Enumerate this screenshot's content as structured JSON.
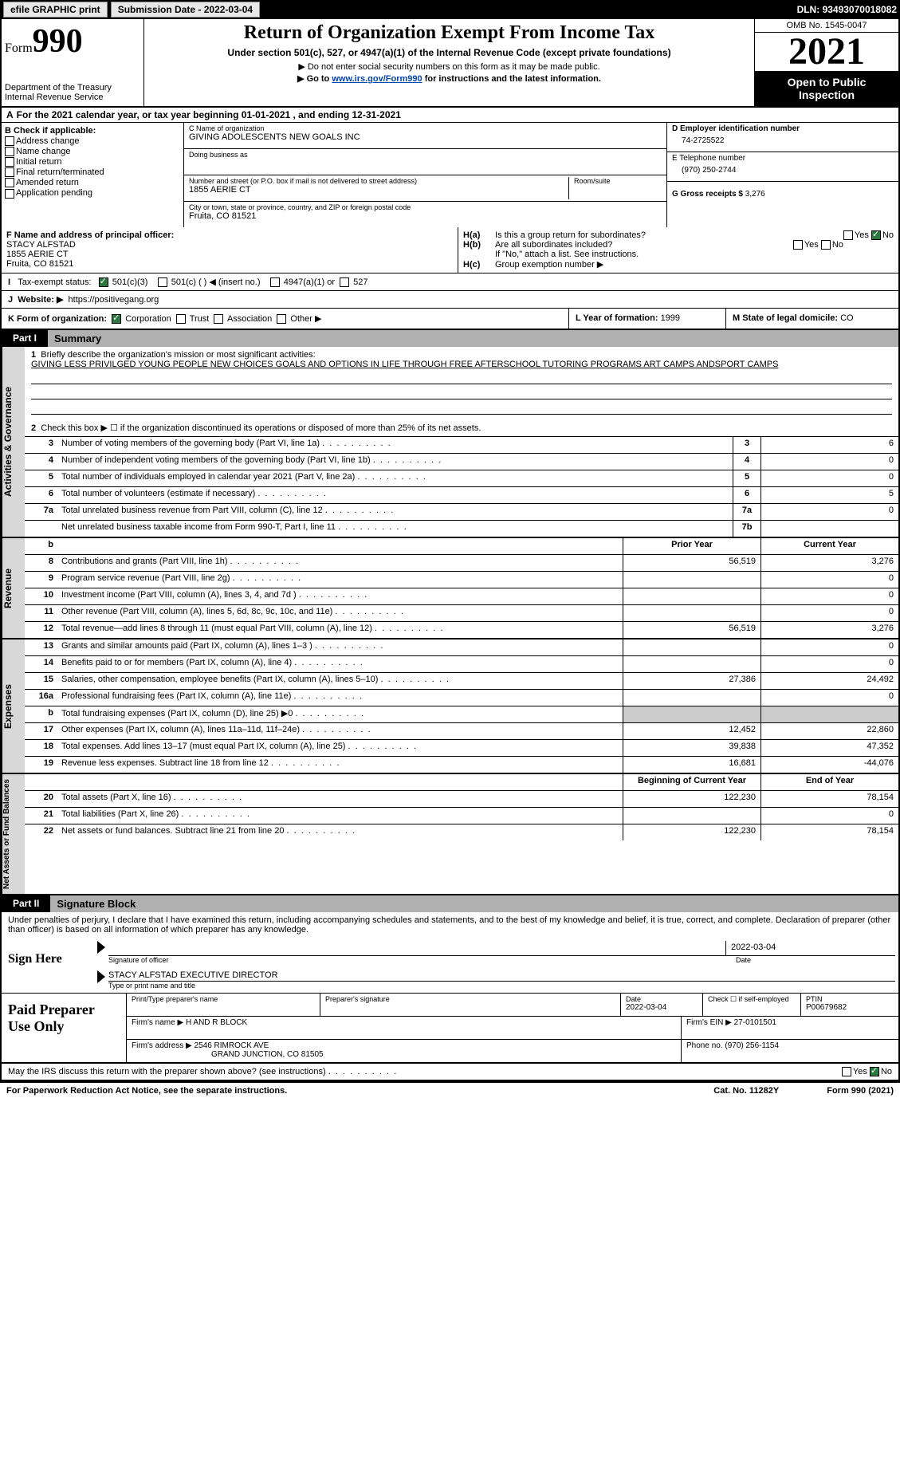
{
  "topbar": {
    "efile": "efile GRAPHIC print",
    "subdate_lbl": "Submission Date - ",
    "subdate": "2022-03-04",
    "dln_lbl": "DLN: ",
    "dln": "93493070018082"
  },
  "header": {
    "form_word": "Form",
    "form_num": "990",
    "dept": "Department of the Treasury",
    "irs": "Internal Revenue Service",
    "title": "Return of Organization Exempt From Income Tax",
    "subtitle": "Under section 501(c), 527, or 4947(a)(1) of the Internal Revenue Code (except private foundations)",
    "note1": "▶ Do not enter social security numbers on this form as it may be made public.",
    "note2_pre": "▶ Go to ",
    "note2_link": "www.irs.gov/Form990",
    "note2_post": " for instructions and the latest information.",
    "omb": "OMB No. 1545-0047",
    "year": "2021",
    "inspect": "Open to Public Inspection"
  },
  "sectA": {
    "text": "For the 2021 calendar year, or tax year beginning 01-01-2021    , and ending 12-31-2021"
  },
  "boxB": {
    "hdr": "B Check if applicable:",
    "items": [
      "Address change",
      "Name change",
      "Initial return",
      "Final return/terminated",
      "Amended return",
      "Application pending"
    ]
  },
  "boxC": {
    "name_lbl": "C Name of organization",
    "name": "GIVING ADOLESCENTS NEW GOALS INC",
    "dba_lbl": "Doing business as",
    "dba": "",
    "addr_lbl": "Number and street (or P.O. box if mail is not delivered to street address)",
    "room_lbl": "Room/suite",
    "addr": "1855 AERIE CT",
    "city_lbl": "City or town, state or province, country, and ZIP or foreign postal code",
    "city": "Fruita, CO  81521"
  },
  "boxD": {
    "ein_lbl": "D Employer identification number",
    "ein": "74-2725522",
    "tel_lbl": "E Telephone number",
    "tel": "(970) 250-2744",
    "gross_lbl": "G Gross receipts $ ",
    "gross": "3,276"
  },
  "boxF": {
    "lbl": "F  Name and address of principal officer:",
    "name": "STACY ALFSTAD",
    "addr1": "1855 AERIE CT",
    "addr2": "Fruita, CO  81521"
  },
  "boxH": {
    "a_lbl": "Is this a group return for subordinates?",
    "a_tag": "H(a)",
    "b_lbl": "Are all subordinates included?",
    "b_tag": "H(b)",
    "b_note": "If \"No,\" attach a list. See instructions.",
    "c_lbl": "Group exemption number ▶",
    "c_tag": "H(c)",
    "yes": "Yes",
    "no": "No"
  },
  "boxI": {
    "lbl": "Tax-exempt status:",
    "c3": "501(c)(3)",
    "c": "501(c) (  ) ◀ (insert no.)",
    "a1": "4947(a)(1) or",
    "s527": "527"
  },
  "boxJ": {
    "lbl": "Website: ▶",
    "val": "https://positivegang.org"
  },
  "boxK": {
    "lbl": "K Form of organization:",
    "corp": "Corporation",
    "trust": "Trust",
    "assoc": "Association",
    "other": "Other ▶"
  },
  "boxL": {
    "lbl": "L Year of formation: ",
    "val": "1999"
  },
  "boxM": {
    "lbl": "M State of legal domicile: ",
    "val": "CO"
  },
  "part1": {
    "tab": "Part I",
    "title": "Summary"
  },
  "summary": {
    "l1_lbl": "Briefly describe the organization's mission or most significant activities:",
    "l1_txt": "GIVING LESS PRIVILGED YOUNG PEOPLE NEW CHOICES GOALS AND OPTIONS IN LIFE THROUGH FREE AFTERSCHOOL TUTORING PROGRAMS ART CAMPS ANDSPORT CAMPS",
    "l2": "Check this box ▶ ☐  if the organization discontinued its operations or disposed of more than 25% of its net assets.",
    "rows_gov": [
      {
        "n": "3",
        "t": "Number of voting members of the governing body (Part VI, line 1a)",
        "rn": "3",
        "v": "6"
      },
      {
        "n": "4",
        "t": "Number of independent voting members of the governing body (Part VI, line 1b)",
        "rn": "4",
        "v": "0"
      },
      {
        "n": "5",
        "t": "Total number of individuals employed in calendar year 2021 (Part V, line 2a)",
        "rn": "5",
        "v": "0"
      },
      {
        "n": "6",
        "t": "Total number of volunteers (estimate if necessary)",
        "rn": "6",
        "v": "5"
      },
      {
        "n": "7a",
        "t": "Total unrelated business revenue from Part VIII, column (C), line 12",
        "rn": "7a",
        "v": "0"
      },
      {
        "n": "",
        "t": "Net unrelated business taxable income from Form 990-T, Part I, line 11",
        "rn": "7b",
        "v": ""
      }
    ],
    "col_prior": "Prior Year",
    "col_curr": "Current Year",
    "vtab_gov": "Activities & Governance",
    "vtab_rev": "Revenue",
    "vtab_exp": "Expenses",
    "vtab_net": "Net Assets or Fund Balances",
    "rows_rev": [
      {
        "n": "8",
        "t": "Contributions and grants (Part VIII, line 1h)",
        "p": "56,519",
        "c": "3,276"
      },
      {
        "n": "9",
        "t": "Program service revenue (Part VIII, line 2g)",
        "p": "",
        "c": "0"
      },
      {
        "n": "10",
        "t": "Investment income (Part VIII, column (A), lines 3, 4, and 7d )",
        "p": "",
        "c": "0"
      },
      {
        "n": "11",
        "t": "Other revenue (Part VIII, column (A), lines 5, 6d, 8c, 9c, 10c, and 11e)",
        "p": "",
        "c": "0"
      },
      {
        "n": "12",
        "t": "Total revenue—add lines 8 through 11 (must equal Part VIII, column (A), line 12)",
        "p": "56,519",
        "c": "3,276"
      }
    ],
    "rows_exp": [
      {
        "n": "13",
        "t": "Grants and similar amounts paid (Part IX, column (A), lines 1–3 )",
        "p": "",
        "c": "0"
      },
      {
        "n": "14",
        "t": "Benefits paid to or for members (Part IX, column (A), line 4)",
        "p": "",
        "c": "0"
      },
      {
        "n": "15",
        "t": "Salaries, other compensation, employee benefits (Part IX, column (A), lines 5–10)",
        "p": "27,386",
        "c": "24,492"
      },
      {
        "n": "16a",
        "t": "Professional fundraising fees (Part IX, column (A), line 11e)",
        "p": "",
        "c": "0"
      },
      {
        "n": "b",
        "t": "Total fundraising expenses (Part IX, column (D), line 25) ▶0",
        "p": "SHADE",
        "c": "SHADE"
      },
      {
        "n": "17",
        "t": "Other expenses (Part IX, column (A), lines 11a–11d, 11f–24e)",
        "p": "12,452",
        "c": "22,860"
      },
      {
        "n": "18",
        "t": "Total expenses. Add lines 13–17 (must equal Part IX, column (A), line 25)",
        "p": "39,838",
        "c": "47,352"
      },
      {
        "n": "19",
        "t": "Revenue less expenses. Subtract line 18 from line 12",
        "p": "16,681",
        "c": "-44,076"
      }
    ],
    "col_beg": "Beginning of Current Year",
    "col_end": "End of Year",
    "rows_net": [
      {
        "n": "20",
        "t": "Total assets (Part X, line 16)",
        "p": "122,230",
        "c": "78,154"
      },
      {
        "n": "21",
        "t": "Total liabilities (Part X, line 26)",
        "p": "",
        "c": "0"
      },
      {
        "n": "22",
        "t": "Net assets or fund balances. Subtract line 21 from line 20",
        "p": "122,230",
        "c": "78,154"
      }
    ]
  },
  "part2": {
    "tab": "Part II",
    "title": "Signature Block"
  },
  "sig": {
    "penalty": "Under penalties of perjury, I declare that I have examined this return, including accompanying schedules and statements, and to the best of my knowledge and belief, it is true, correct, and complete. Declaration of preparer (other than officer) is based on all information of which preparer has any knowledge.",
    "sign_here": "Sign Here",
    "sig_officer": "Signature of officer",
    "date": "Date",
    "sig_date": "2022-03-04",
    "name_title": "STACY ALFSTAD  EXECUTIVE DIRECTOR",
    "type_name": "Type or print name and title",
    "paid": "Paid Preparer Use Only",
    "pp_name": "Print/Type preparer's name",
    "pp_sig": "Preparer's signature",
    "pp_date_lbl": "Date",
    "pp_date": "2022-03-04",
    "pp_check": "Check ☐ if self-employed",
    "ptin_lbl": "PTIN",
    "ptin": "P00679682",
    "firm_name_lbl": "Firm's name    ▶ ",
    "firm_name": "H AND R BLOCK",
    "firm_ein_lbl": "Firm's EIN ▶ ",
    "firm_ein": "27-0101501",
    "firm_addr_lbl": "Firm's address ▶ ",
    "firm_addr1": "2546 RIMROCK AVE",
    "firm_addr2": "GRAND JUNCTION, CO  81505",
    "firm_ph_lbl": "Phone no. ",
    "firm_ph": "(970) 256-1154",
    "discuss": "May the IRS discuss this return with the preparer shown above? (see instructions)"
  },
  "footer": {
    "l": "For Paperwork Reduction Act Notice, see the separate instructions.",
    "c": "Cat. No. 11282Y",
    "r": "Form 990 (2021)"
  }
}
